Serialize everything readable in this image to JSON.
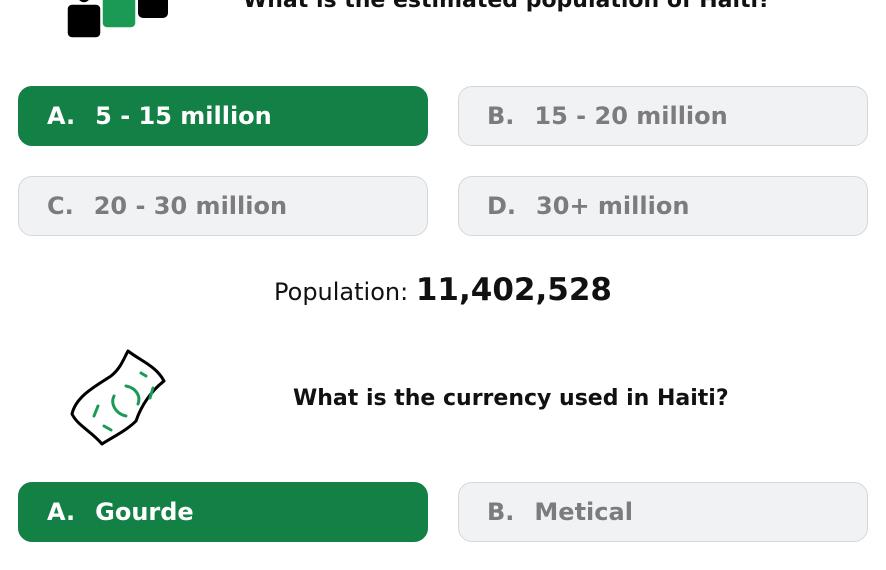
{
  "questions": [
    {
      "icon": "people-icon",
      "text": "What is the estimated population of Haiti?",
      "options": [
        {
          "letter": "A.",
          "label": "5 - 15 million",
          "selected": true
        },
        {
          "letter": "B.",
          "label": "15 - 20 million",
          "selected": false
        },
        {
          "letter": "C.",
          "label": "20 - 30 million",
          "selected": false
        },
        {
          "letter": "D.",
          "label": "30+ million",
          "selected": false
        }
      ],
      "result_label": "Population:",
      "result_value": "11,402,528"
    },
    {
      "icon": "money-bill-icon",
      "text": "What is the currency used in Haiti?",
      "options": [
        {
          "letter": "A.",
          "label": "Gourde",
          "selected": true
        },
        {
          "letter": "B.",
          "label": "Metical",
          "selected": false
        }
      ]
    }
  ],
  "colors": {
    "selected": "#138045",
    "unselected_bg": "#f1f2f4",
    "unselected_text": "#7c7c7e"
  }
}
